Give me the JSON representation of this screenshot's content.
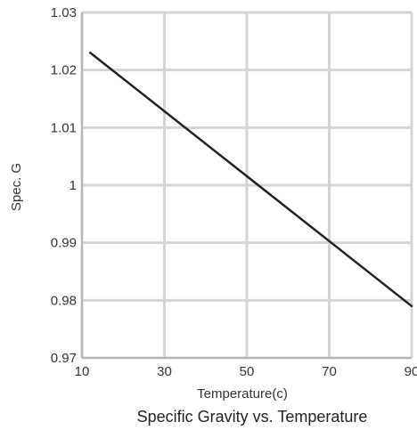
{
  "chart_data": {
    "type": "line",
    "title": "Specific Gravity vs. Temperature",
    "xlabel": "Temperature(c)",
    "ylabel": "Spec. G",
    "xlim": [
      10,
      90
    ],
    "ylim": [
      0.97,
      1.03
    ],
    "x_ticks": [
      "10",
      "30",
      "50",
      "70",
      "90"
    ],
    "y_ticks": [
      "0.97",
      "0.98",
      "0.99",
      "1",
      "1.01",
      "1.02",
      "1.03"
    ],
    "grid": true,
    "series": [
      {
        "x": [
          12,
          90
        ],
        "y": [
          1.023,
          0.979
        ],
        "color": "#222222"
      }
    ]
  }
}
